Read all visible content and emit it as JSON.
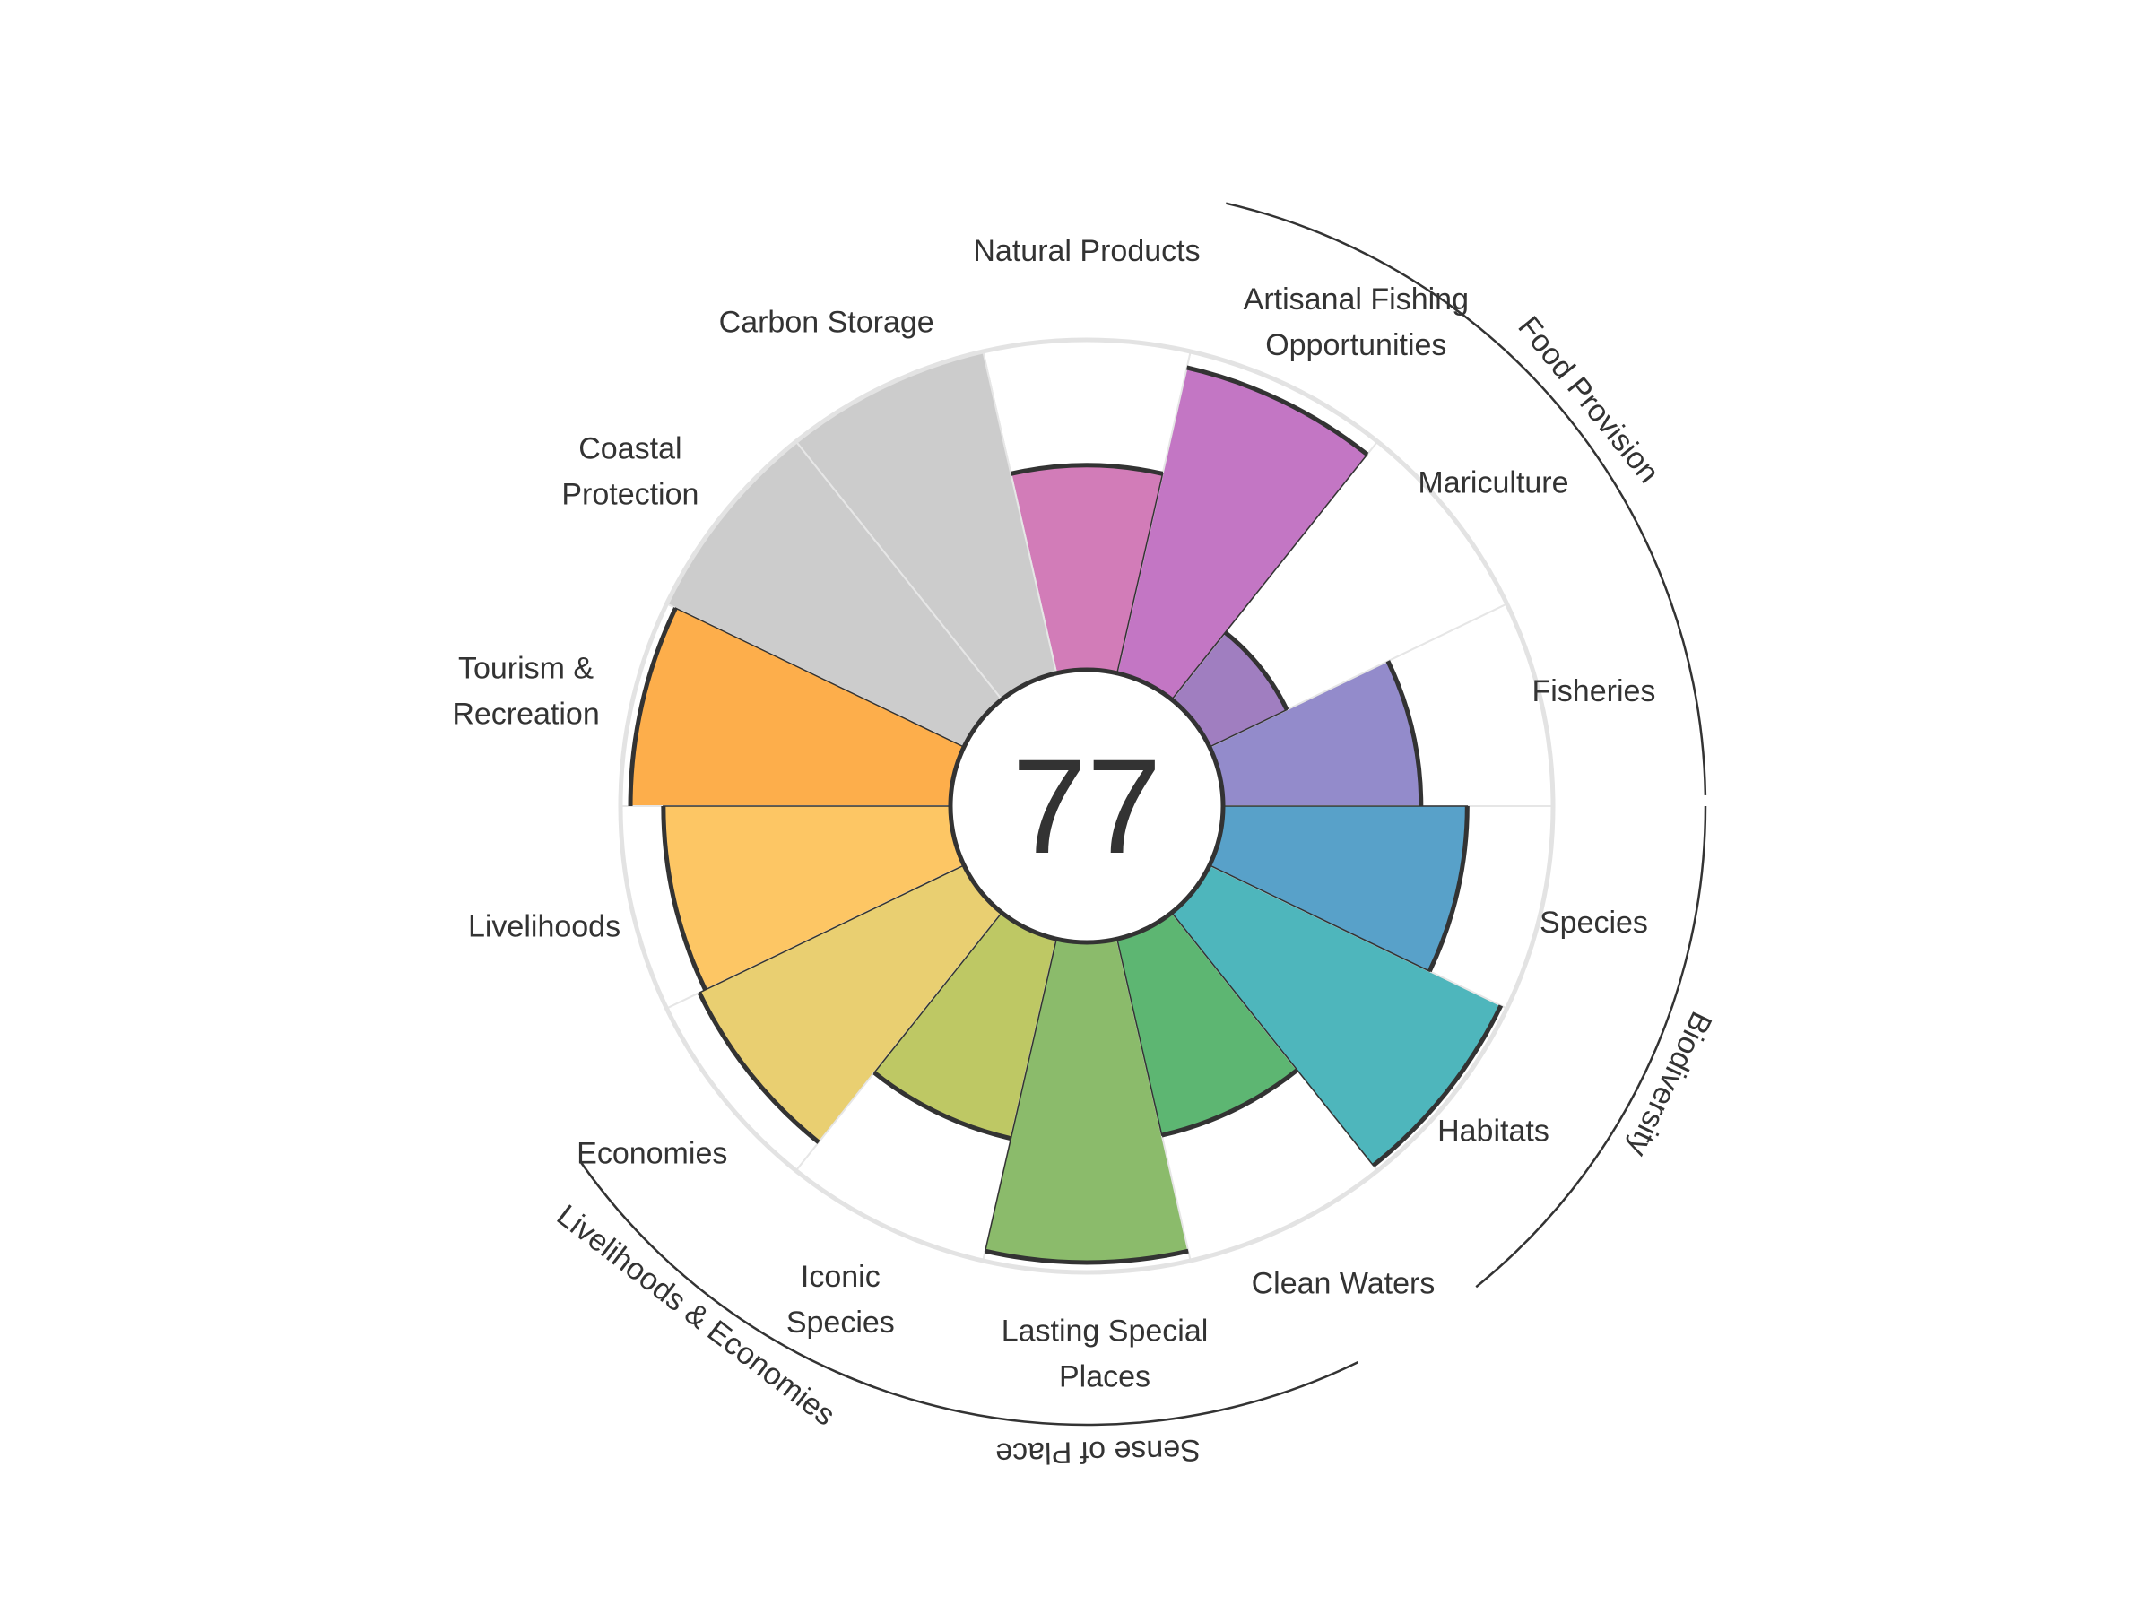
{
  "chart_data": {
    "type": "polar-bar",
    "title": "",
    "center_score": "77",
    "max_value": 100,
    "gridline": "outer circle",
    "goals": [
      {
        "name": "Fisheries",
        "label": [
          "Fisheries"
        ],
        "value": 60,
        "color": "#938bcb",
        "active": true
      },
      {
        "name": "Mariculture",
        "label": [
          "Mariculture"
        ],
        "value": 26,
        "color": "#a07ec0",
        "active": true
      },
      {
        "name": "Artisanal Fishing Opportunities",
        "label": [
          "Artisanal Fishing",
          "Opportunities"
        ],
        "value": 95,
        "color": "#c376c4",
        "active": true
      },
      {
        "name": "Natural Products",
        "label": [
          "Natural Products"
        ],
        "value": 62,
        "color": "#d27cb8",
        "active": true
      },
      {
        "name": "Carbon Storage",
        "label": [
          "Carbon Storage"
        ],
        "value": 100,
        "color": "#cccccc",
        "active": false
      },
      {
        "name": "Coastal Protection",
        "label": [
          "Coastal",
          "Protection"
        ],
        "value": 100,
        "color": "#cccccc",
        "active": false
      },
      {
        "name": "Tourism & Recreation",
        "label": [
          "Tourism &",
          "Recreation"
        ],
        "value": 97,
        "color": "#fdae4b",
        "active": true
      },
      {
        "name": "Livelihoods",
        "label": [
          "Livelihoods"
        ],
        "value": 87,
        "color": "#fdc664",
        "active": true
      },
      {
        "name": "Economies",
        "label": [
          "Economies"
        ],
        "value": 89,
        "color": "#e9cf71",
        "active": true
      },
      {
        "name": "Iconic Species",
        "label": [
          "Iconic",
          "Species"
        ],
        "value": 62,
        "color": "#bec864",
        "active": true
      },
      {
        "name": "Lasting Special Places",
        "label": [
          "Lasting Special",
          "Places"
        ],
        "value": 97,
        "color": "#8bbb6b",
        "active": true
      },
      {
        "name": "Clean Waters",
        "label": [
          "Clean Waters"
        ],
        "value": 61,
        "color": "#5db672",
        "active": true
      },
      {
        "name": "Habitats",
        "label": [
          "Habitats"
        ],
        "value": 98,
        "color": "#4eb6bc",
        "active": true
      },
      {
        "name": "Species",
        "label": [
          "Species"
        ],
        "value": 74,
        "color": "#58a1c9",
        "active": true
      }
    ],
    "groups": [
      {
        "name": "Food Provision"
      },
      {
        "name": "Biodiversity"
      },
      {
        "name": "Sense of Place"
      },
      {
        "name": "Livelihoods & Economies"
      }
    ]
  }
}
